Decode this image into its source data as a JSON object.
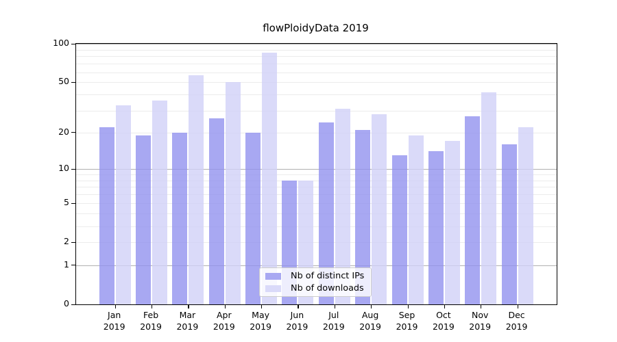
{
  "title": "flowPloidyData 2019",
  "colors": {
    "ips_bar": "#a8a8f2",
    "downloads_bar": "#dadaf9",
    "ips_bar_rgba": "rgba(146,146,239,0.8)",
    "downloads_bar_rgba": "rgba(209,209,247,0.8)",
    "grid_major": "#b0b0b0",
    "grid_minor": "#ececec",
    "axis": "#000000",
    "legend_border": "#cccccc"
  },
  "legend": {
    "items": [
      {
        "label": "Nb of distinct IPs",
        "series": "ips"
      },
      {
        "label": "Nb of downloads",
        "series": "downloads"
      }
    ]
  },
  "chart_data": {
    "type": "bar",
    "title": "flowPloidyData 2019",
    "categories": [
      "Jan",
      "Feb",
      "Mar",
      "Apr",
      "May",
      "Jun",
      "Jul",
      "Aug",
      "Sep",
      "Oct",
      "Nov",
      "Dec"
    ],
    "x_tick_second_line": "2019",
    "series": [
      {
        "name": "Nb of distinct IPs",
        "color": "#a8a8f2",
        "values": [
          22,
          19,
          20,
          26,
          20,
          8,
          24,
          21,
          13,
          14,
          27,
          16
        ]
      },
      {
        "name": "Nb of downloads",
        "color": "#dadaf9",
        "values": [
          33,
          36,
          57,
          50,
          85,
          8,
          31,
          28,
          19,
          17,
          42,
          22
        ]
      }
    ],
    "yscale": "log1p",
    "ylim": [
      0,
      100
    ],
    "yticks": [
      0,
      1,
      2,
      5,
      10,
      20,
      50,
      100
    ],
    "grid": {
      "major": [
        1,
        10,
        100
      ],
      "minor": [
        2,
        3,
        4,
        5,
        6,
        7,
        8,
        9,
        20,
        30,
        40,
        50,
        60,
        70,
        80,
        90
      ]
    },
    "xlabel": "",
    "ylabel": "",
    "legend_position": "lower center"
  }
}
